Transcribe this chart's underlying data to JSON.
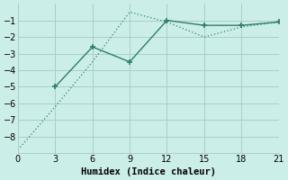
{
  "line_dot_x": [
    0,
    3,
    6,
    9,
    12,
    15,
    18,
    21
  ],
  "line_dot_y": [
    -8.8,
    -6.2,
    -3.5,
    -0.5,
    -1.1,
    -2.0,
    -1.4,
    -1.1
  ],
  "line_solid_x": [
    3,
    6,
    9,
    12,
    15,
    18,
    21
  ],
  "line_solid_y": [
    -5.0,
    -2.6,
    -3.5,
    -1.0,
    -1.3,
    -1.3,
    -1.1
  ],
  "color": "#2d7d6d",
  "bg_color": "#cceee8",
  "grid_color": "#aacccc",
  "xlabel": "Humidex (Indice chaleur)",
  "xlim": [
    0,
    21
  ],
  "ylim": [
    -9,
    0
  ],
  "xticks": [
    0,
    3,
    6,
    9,
    12,
    15,
    18,
    21
  ],
  "yticks": [
    -8,
    -7,
    -6,
    -5,
    -4,
    -3,
    -2,
    -1
  ],
  "xlabel_fontsize": 7.5,
  "tick_fontsize": 7
}
